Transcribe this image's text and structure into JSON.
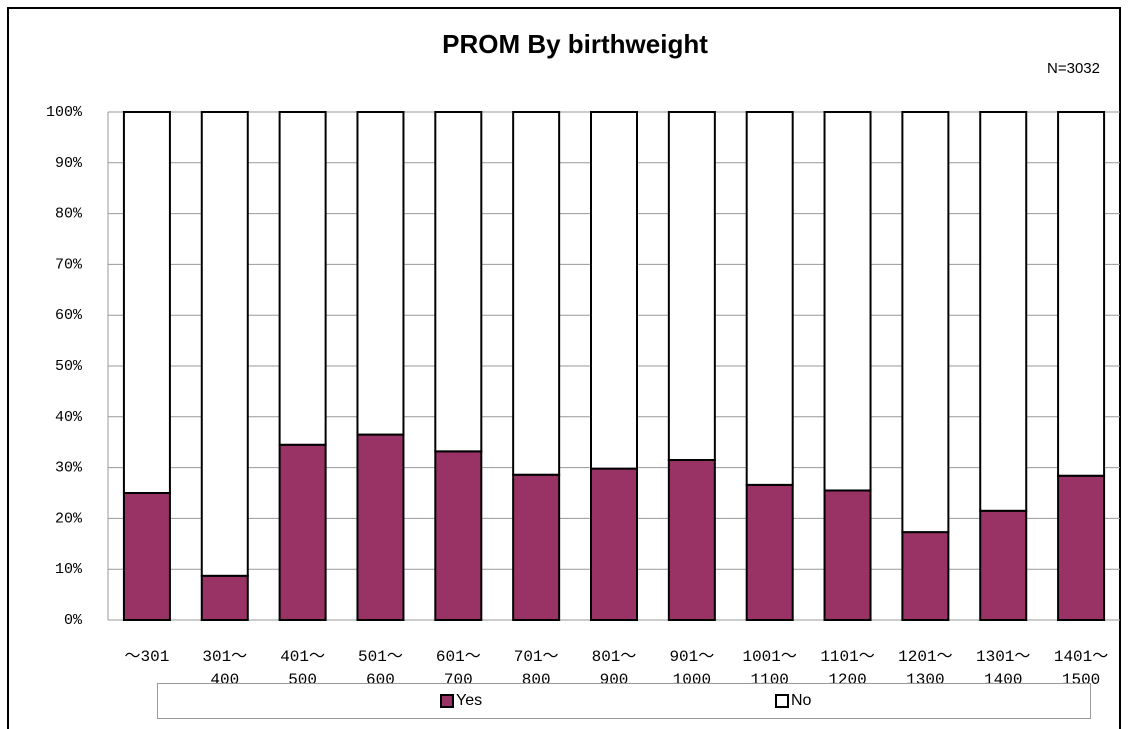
{
  "chart_data": {
    "type": "stacked_bar",
    "title": "PROM By birthweight",
    "subtitle": "N=3032",
    "categories": [
      "～301",
      "301～\n400",
      "401～\n500",
      "501～\n600",
      "601～\n700",
      "701～\n800",
      "801～\n900",
      "901～\n1000",
      "1001～\n1100",
      "1101～\n1200",
      "1201～\n1300",
      "1301～\n1400",
      "1401～\n1500"
    ],
    "series": [
      {
        "name": "Yes",
        "color": "#993366",
        "values": [
          25,
          8.7,
          34.5,
          36.5,
          33.2,
          28.6,
          29.8,
          31.5,
          26.6,
          25.5,
          17.3,
          21.5,
          28.4
        ]
      },
      {
        "name": "No",
        "color": "#ffffff",
        "values": [
          75,
          91.3,
          65.5,
          63.5,
          66.8,
          71.4,
          70.2,
          68.5,
          73.4,
          74.5,
          82.7,
          78.5,
          71.6
        ]
      }
    ],
    "ylim": [
      0,
      100
    ],
    "yticks": [
      {
        "value": 0,
        "label": "0%"
      },
      {
        "value": 10,
        "label": "10%"
      },
      {
        "value": 20,
        "label": "20%"
      },
      {
        "value": 30,
        "label": "30%"
      },
      {
        "value": 40,
        "label": "40%"
      },
      {
        "value": 50,
        "label": "50%"
      },
      {
        "value": 60,
        "label": "60%"
      },
      {
        "value": 70,
        "label": "70%"
      },
      {
        "value": 80,
        "label": "80%"
      },
      {
        "value": 90,
        "label": "90%"
      },
      {
        "value": 100,
        "label": "100%"
      }
    ],
    "grid": true,
    "legend": "bottom"
  }
}
